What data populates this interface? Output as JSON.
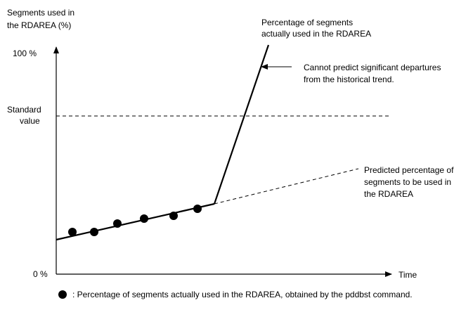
{
  "y_axis": {
    "title_line1": "Segments used in",
    "title_line2": "the RDAREA (%)",
    "tick_top": "100 %",
    "tick_standard_line1": "Standard",
    "tick_standard_line2": "value",
    "tick_bottom": "0 %"
  },
  "x_axis": {
    "title": "Time"
  },
  "annotations": {
    "actual_line1": "Percentage of segments",
    "actual_line2": "actually used in the RDAREA",
    "cannot_line1": "Cannot predict significant departures",
    "cannot_line2": "from the historical trend.",
    "predicted_line1": "Predicted percentage of",
    "predicted_line2": "segments to be used in",
    "predicted_line3": "the RDAREA"
  },
  "legend": {
    "text_before": ": Percentage of segments actually used in the RDAREA, obtained by the ",
    "command": "pddbst",
    "text_after": " command."
  },
  "colors": {
    "ink": "#000000",
    "background": "#ffffff"
  }
}
